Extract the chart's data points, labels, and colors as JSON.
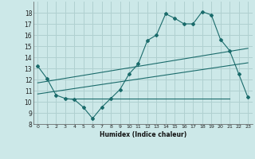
{
  "xlabel": "Humidex (Indice chaleur)",
  "ylabel": "",
  "xlim": [
    -0.5,
    23.5
  ],
  "ylim": [
    8,
    19
  ],
  "yticks": [
    8,
    9,
    10,
    11,
    12,
    13,
    14,
    15,
    16,
    17,
    18
  ],
  "xticks": [
    0,
    1,
    2,
    3,
    4,
    5,
    6,
    7,
    8,
    9,
    10,
    11,
    12,
    13,
    14,
    15,
    16,
    17,
    18,
    19,
    20,
    21,
    22,
    23
  ],
  "bg_color": "#cce8e8",
  "grid_color": "#b0d0d0",
  "line_color": "#1a6b6b",
  "main_curve_x": [
    0,
    1,
    2,
    3,
    4,
    5,
    6,
    7,
    8,
    9,
    10,
    11,
    12,
    13,
    14,
    15,
    16,
    17,
    18,
    19,
    20,
    21,
    22,
    23
  ],
  "main_curve_y": [
    13.2,
    12.1,
    10.6,
    10.3,
    10.2,
    9.5,
    8.5,
    9.5,
    10.3,
    11.1,
    12.5,
    13.4,
    15.5,
    16.0,
    17.9,
    17.5,
    17.0,
    17.0,
    18.1,
    17.8,
    15.6,
    14.6,
    12.5,
    10.4
  ],
  "reg_line1_x": [
    0,
    23
  ],
  "reg_line1_y": [
    11.7,
    14.8
  ],
  "reg_line2_x": [
    0,
    23
  ],
  "reg_line2_y": [
    10.7,
    13.5
  ],
  "horiz_line_x": [
    3,
    21
  ],
  "horiz_line_y": [
    10.3,
    10.3
  ]
}
